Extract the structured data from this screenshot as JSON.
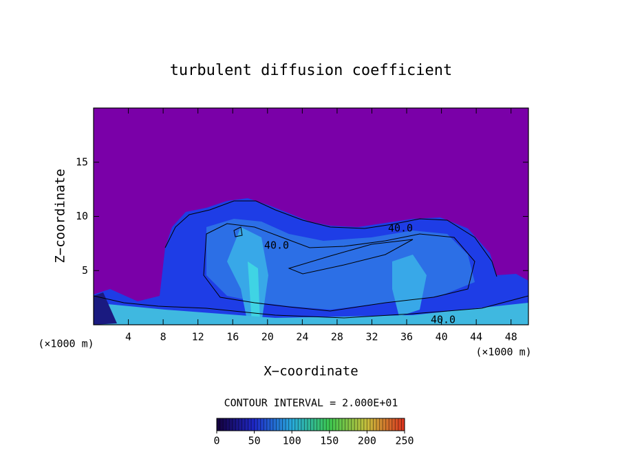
{
  "chart_data": {
    "type": "contour",
    "title": "turbulent diffusion coefficient",
    "xlabel": "X−coordinate",
    "ylabel": "Z−coordinate",
    "x_unit": "(×1000 m)",
    "xlim": [
      0,
      50
    ],
    "xticks": [
      4,
      8,
      12,
      16,
      20,
      24,
      28,
      32,
      36,
      40,
      44,
      48
    ],
    "ylim": [
      0,
      20
    ],
    "yticks": [
      5,
      10,
      15
    ],
    "contour_labels": [
      "40.0",
      "40.0",
      "40.0"
    ],
    "colorbar": {
      "title": "CONTOUR INTERVAL = 2.000E+01",
      "clim": [
        0,
        250
      ],
      "ticks": [
        0,
        50,
        100,
        150,
        200,
        250
      ]
    }
  }
}
